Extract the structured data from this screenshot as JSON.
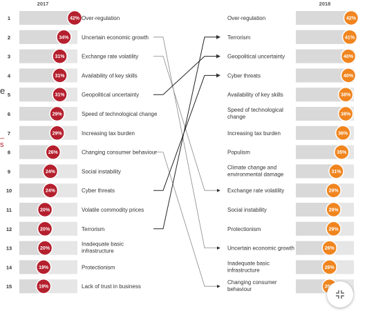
{
  "chart_data": {
    "type": "slope",
    "title": "",
    "left": {
      "year": "2017",
      "color": "#b5202e",
      "ranks": [
        "1",
        "2",
        "3",
        "4",
        "5",
        "6",
        "7",
        "8",
        "9",
        "10",
        "11",
        "12",
        "13",
        "14",
        "15"
      ],
      "items": [
        {
          "label": "Over-regulation",
          "value": 42,
          "value_label": "42%"
        },
        {
          "label": "Uncertain economic growth",
          "value": 34,
          "value_label": "34%"
        },
        {
          "label": "Exchange rate volatility",
          "value": 31,
          "value_label": "31%"
        },
        {
          "label": "Availability of key skills",
          "value": 31,
          "value_label": "31%"
        },
        {
          "label": "Geopolitical uncertainty",
          "value": 31,
          "value_label": "31%"
        },
        {
          "label": "Speed of technological change",
          "value": 29,
          "value_label": "29%"
        },
        {
          "label": "Increasing tax burden",
          "value": 29,
          "value_label": "29%"
        },
        {
          "label": "Changing consumer behaviour",
          "value": 26,
          "value_label": "26%"
        },
        {
          "label": "Social instability",
          "value": 24,
          "value_label": "24%"
        },
        {
          "label": "Cyber threats",
          "value": 24,
          "value_label": "24%"
        },
        {
          "label": "Volatile commodity prices",
          "value": 20,
          "value_label": "20%"
        },
        {
          "label": "Terrorism",
          "value": 20,
          "value_label": "20%"
        },
        {
          "label": "Inadequate basic infrastructure",
          "lines": [
            "Inadequate basic",
            "infrastructure"
          ],
          "value": 20,
          "value_label": "20%"
        },
        {
          "label": "Protectionism",
          "value": 19,
          "value_label": "19%"
        },
        {
          "label": "Lack of trust in business",
          "value": 19,
          "value_label": "19%"
        }
      ]
    },
    "right": {
      "year": "2018",
      "color": "#f0851f",
      "items": [
        {
          "label": "Over-regulation",
          "value": 42,
          "value_label": "42%"
        },
        {
          "label": "Terrorism",
          "value": 41,
          "value_label": "41%"
        },
        {
          "label": "Geopolitical uncertainty",
          "value": 40,
          "value_label": "40%"
        },
        {
          "label": "Cyber threats",
          "value": 40,
          "value_label": "40%"
        },
        {
          "label": "Availability of key skills",
          "value": 38,
          "value_label": "38%"
        },
        {
          "label": "Speed of technological change",
          "lines": [
            "Speed of technological",
            "change"
          ],
          "value": 38,
          "value_label": "38%"
        },
        {
          "label": "Increasing tax burden",
          "value": 36,
          "value_label": "36%"
        },
        {
          "label": "Populism",
          "value": 35,
          "value_label": "35%"
        },
        {
          "label": "Climate change and environmental damage",
          "lines": [
            "Climate change and",
            "environmental damage"
          ],
          "value": 31,
          "value_label": "31%"
        },
        {
          "label": "Exchange rate volatility",
          "value": 29,
          "value_label": "29%"
        },
        {
          "label": "Social instability",
          "value": 29,
          "value_label": "29%"
        },
        {
          "label": "Protectionism",
          "value": 29,
          "value_label": "29%"
        },
        {
          "label": "Uncertain economic growth",
          "value": 26,
          "value_label": "26%"
        },
        {
          "label": "Inadequate basic infrastructure",
          "lines": [
            "Inadequate basic",
            "infrastructure"
          ],
          "value": 26,
          "value_label": "26%"
        },
        {
          "label": "Changing consumer behaviour",
          "lines": [
            "Changing consumer",
            "behaviour"
          ],
          "value": 26,
          "value_label": "26%"
        }
      ]
    },
    "connectors": [
      {
        "from": "Uncertain economic growth",
        "to": "Uncertain economic growth"
      },
      {
        "from": "Exchange rate volatility",
        "to": "Exchange rate volatility"
      },
      {
        "from": "Geopolitical uncertainty",
        "to": "Geopolitical uncertainty"
      },
      {
        "from": "Changing consumer behaviour",
        "to": "Changing consumer behaviour"
      },
      {
        "from": "Cyber threats",
        "to": "Cyber threats"
      },
      {
        "from": "Terrorism",
        "to": "Terrorism"
      }
    ],
    "highlight_connectors": [
      "Geopolitical uncertainty",
      "Cyber threats",
      "Terrorism"
    ]
  },
  "side_marks": {
    "items": [
      {
        "text": "e",
        "color": "#333333"
      },
      {
        "text": "_",
        "color": "#b5202e"
      },
      {
        "text": "s",
        "color": "#b5202e"
      }
    ]
  },
  "expand_button": {
    "icon": "collapse-arrows-icon"
  }
}
